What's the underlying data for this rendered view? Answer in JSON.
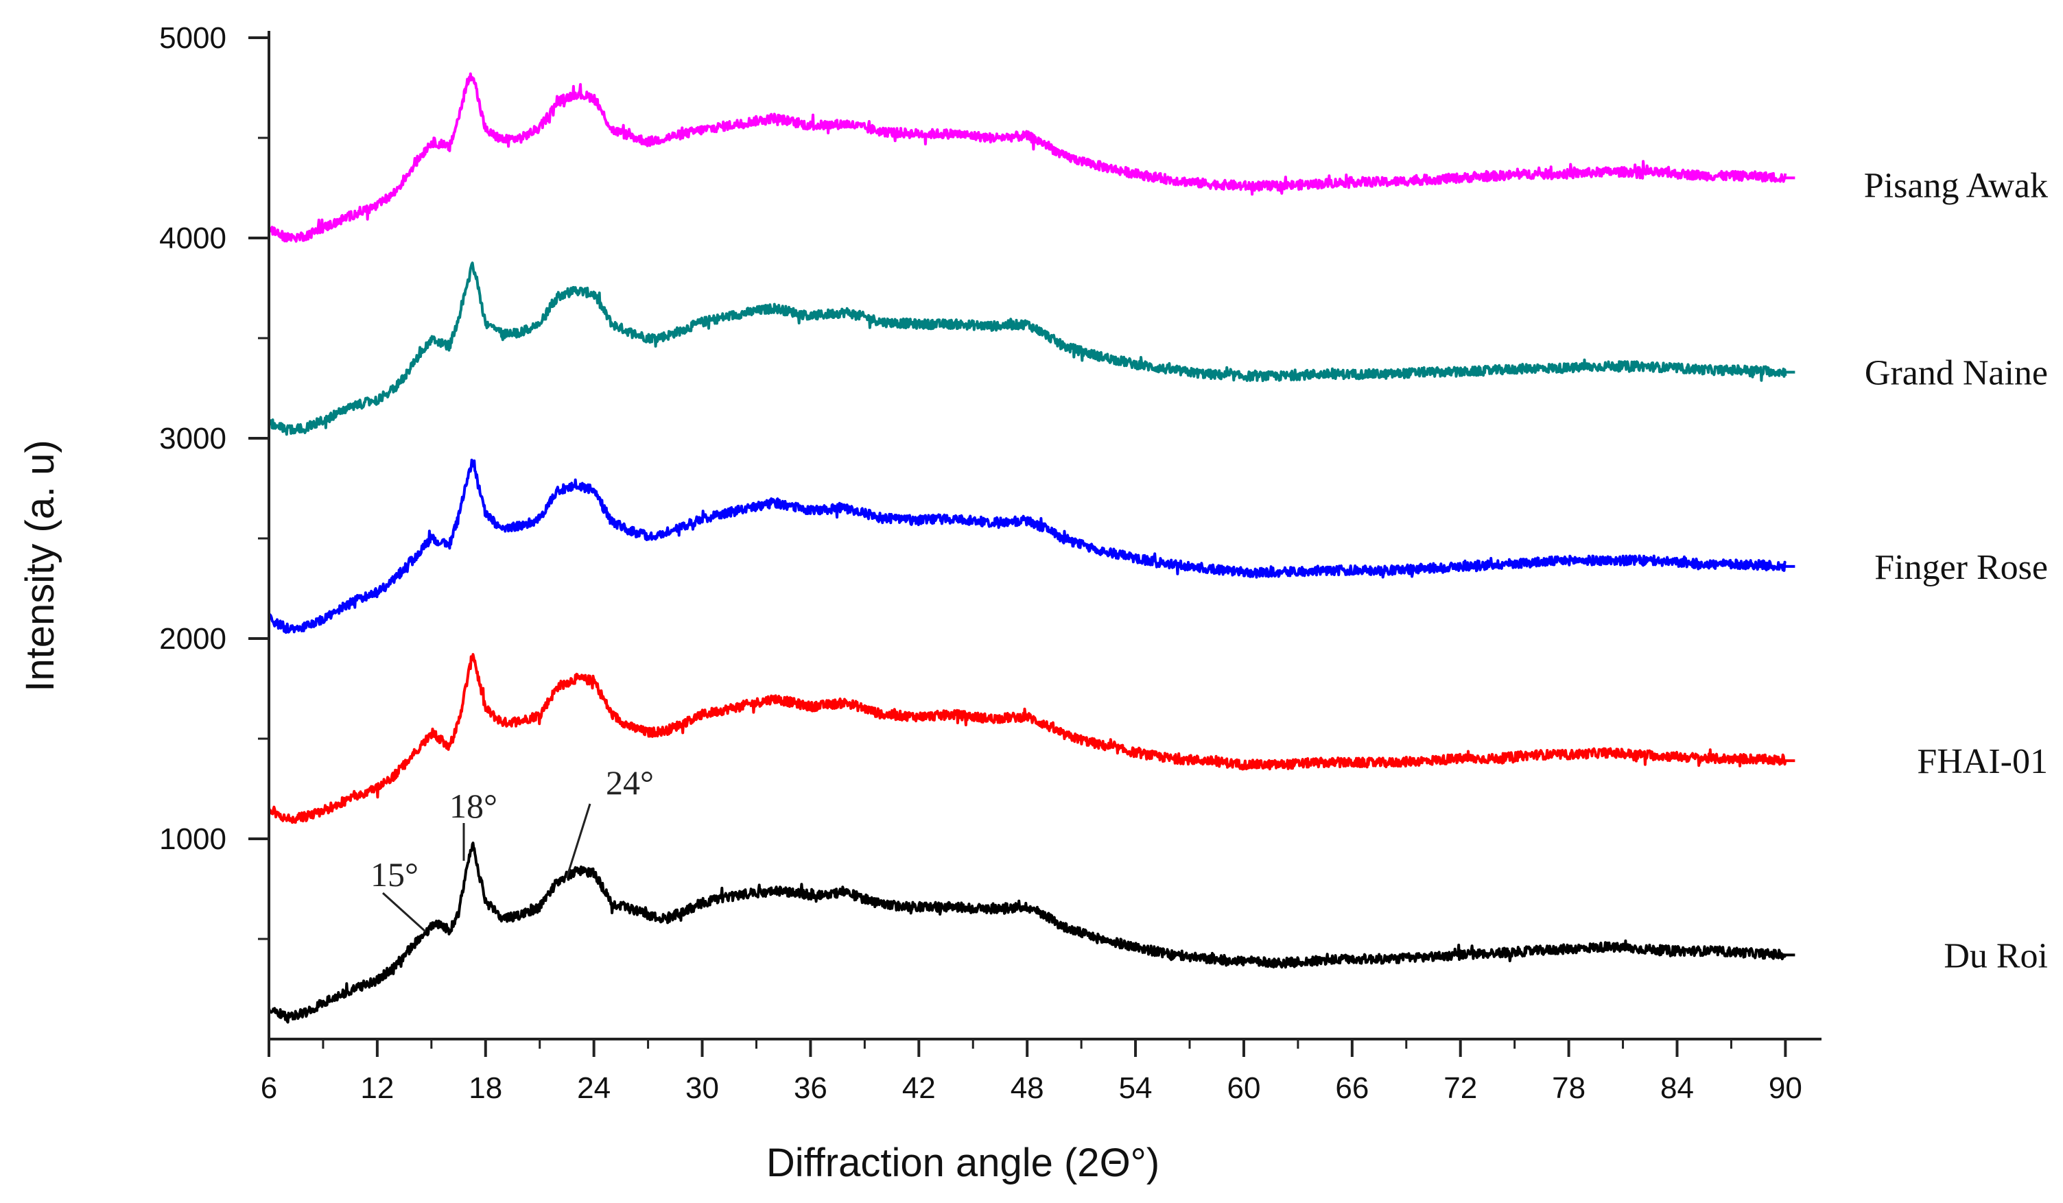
{
  "chart_data": {
    "type": "line",
    "title": "",
    "xlabel": "Diffraction angle (2Θ°)",
    "ylabel": "Intensity (a. u)",
    "xlim": [
      6,
      92
    ],
    "ylim": [
      0,
      5000
    ],
    "xticks": [
      6,
      12,
      18,
      24,
      30,
      36,
      42,
      48,
      54,
      60,
      66,
      72,
      78,
      84,
      90
    ],
    "yticks": [
      1000,
      2000,
      3000,
      4000,
      5000
    ],
    "grid": false,
    "legend": "inline-right",
    "series": [
      {
        "name": "Du Roi",
        "color": "#000000",
        "x": [
          6,
          7,
          8,
          9,
          10,
          11,
          12,
          13,
          14,
          15,
          15.5,
          16,
          16.5,
          17,
          17.3,
          17.7,
          18,
          18.5,
          19,
          20,
          21,
          22,
          23,
          24,
          25,
          26,
          27,
          28,
          30,
          32,
          34,
          36,
          38,
          40,
          42,
          44,
          46,
          48,
          49,
          50,
          52,
          54,
          56,
          58,
          60,
          62,
          64,
          66,
          68,
          70,
          72,
          74,
          76,
          78,
          80,
          82,
          84,
          86,
          88,
          90
        ],
        "y": [
          160,
          110,
          130,
          180,
          220,
          260,
          290,
          370,
          470,
          560,
          580,
          540,
          630,
          860,
          980,
          800,
          690,
          640,
          600,
          620,
          660,
          790,
          840,
          830,
          680,
          650,
          620,
          600,
          680,
          720,
          740,
          720,
          730,
          670,
          660,
          660,
          650,
          660,
          620,
          560,
          500,
          460,
          420,
          400,
          390,
          380,
          390,
          400,
          400,
          410,
          420,
          430,
          440,
          450,
          460,
          450,
          440,
          440,
          430,
          420
        ]
      },
      {
        "name": "FHAI-01",
        "color": "#ff0000",
        "x": [
          6,
          7,
          8,
          9,
          10,
          11,
          12,
          13,
          14,
          15,
          15.5,
          16,
          16.5,
          17,
          17.3,
          17.7,
          18,
          18.5,
          19,
          20,
          21,
          22,
          23,
          24,
          25,
          26,
          27,
          28,
          30,
          32,
          34,
          36,
          38,
          40,
          42,
          44,
          46,
          48,
          49,
          50,
          52,
          54,
          56,
          58,
          60,
          62,
          64,
          66,
          68,
          70,
          72,
          74,
          76,
          78,
          80,
          82,
          84,
          86,
          88,
          90
        ],
        "y": [
          1150,
          1100,
          1110,
          1140,
          1180,
          1220,
          1250,
          1320,
          1420,
          1520,
          1500,
          1460,
          1580,
          1800,
          1930,
          1760,
          1650,
          1610,
          1580,
          1590,
          1620,
          1760,
          1800,
          1790,
          1620,
          1560,
          1530,
          1540,
          1620,
          1660,
          1700,
          1660,
          1680,
          1620,
          1610,
          1620,
          1600,
          1610,
          1570,
          1520,
          1470,
          1430,
          1400,
          1390,
          1370,
          1370,
          1380,
          1380,
          1380,
          1390,
          1400,
          1400,
          1420,
          1420,
          1430,
          1420,
          1410,
          1400,
          1400,
          1390
        ]
      },
      {
        "name": "Finger Rose",
        "color": "#0000ff",
        "x": [
          6,
          7,
          8,
          9,
          10,
          11,
          12,
          13,
          14,
          15,
          15.5,
          16,
          16.5,
          17,
          17.3,
          17.7,
          18,
          18.5,
          19,
          20,
          21,
          22,
          23,
          24,
          25,
          26,
          27,
          28,
          30,
          32,
          34,
          36,
          38,
          40,
          42,
          44,
          46,
          48,
          49,
          50,
          52,
          54,
          56,
          58,
          60,
          62,
          64,
          66,
          68,
          70,
          72,
          74,
          76,
          78,
          80,
          82,
          84,
          86,
          88,
          90
        ],
        "y": [
          2100,
          2050,
          2060,
          2100,
          2150,
          2200,
          2230,
          2300,
          2400,
          2500,
          2480,
          2470,
          2600,
          2800,
          2900,
          2720,
          2620,
          2580,
          2550,
          2560,
          2600,
          2740,
          2760,
          2740,
          2580,
          2540,
          2510,
          2530,
          2600,
          2640,
          2680,
          2640,
          2650,
          2600,
          2590,
          2600,
          2580,
          2590,
          2550,
          2500,
          2440,
          2400,
          2370,
          2350,
          2330,
          2330,
          2340,
          2340,
          2340,
          2350,
          2360,
          2370,
          2380,
          2390,
          2390,
          2390,
          2380,
          2370,
          2370,
          2360
        ]
      },
      {
        "name": "Grand Naine",
        "color": "#008080",
        "x": [
          6,
          7,
          8,
          9,
          10,
          11,
          12,
          13,
          14,
          15,
          15.5,
          16,
          16.5,
          17,
          17.3,
          17.7,
          18,
          18.5,
          19,
          20,
          21,
          22,
          23,
          24,
          25,
          26,
          27,
          28,
          30,
          32,
          34,
          36,
          38,
          40,
          42,
          44,
          46,
          48,
          49,
          50,
          52,
          54,
          56,
          58,
          60,
          62,
          64,
          66,
          68,
          70,
          72,
          74,
          76,
          78,
          80,
          82,
          84,
          86,
          88,
          90
        ],
        "y": [
          3080,
          3040,
          3050,
          3090,
          3130,
          3170,
          3190,
          3250,
          3370,
          3490,
          3480,
          3460,
          3600,
          3780,
          3870,
          3700,
          3580,
          3550,
          3520,
          3530,
          3570,
          3710,
          3740,
          3720,
          3570,
          3530,
          3500,
          3510,
          3580,
          3620,
          3650,
          3610,
          3630,
          3580,
          3570,
          3570,
          3560,
          3570,
          3520,
          3460,
          3410,
          3370,
          3340,
          3320,
          3310,
          3310,
          3320,
          3320,
          3320,
          3330,
          3330,
          3340,
          3350,
          3350,
          3360,
          3360,
          3350,
          3340,
          3340,
          3330
        ]
      },
      {
        "name": "Pisang Awak",
        "color": "#ff00ff",
        "x": [
          6,
          7,
          8,
          9,
          10,
          11,
          12,
          13,
          14,
          15,
          15.5,
          16,
          16.5,
          17,
          17.3,
          17.7,
          18,
          18.5,
          19,
          20,
          21,
          22,
          23,
          24,
          25,
          26,
          27,
          28,
          30,
          32,
          34,
          36,
          38,
          40,
          42,
          44,
          46,
          48,
          49,
          50,
          52,
          54,
          56,
          58,
          60,
          62,
          64,
          66,
          68,
          70,
          72,
          74,
          76,
          78,
          80,
          82,
          84,
          86,
          88,
          90
        ],
        "y": [
          4050,
          4000,
          4010,
          4050,
          4090,
          4130,
          4160,
          4230,
          4360,
          4480,
          4470,
          4450,
          4600,
          4780,
          4820,
          4650,
          4540,
          4510,
          4490,
          4500,
          4550,
          4680,
          4720,
          4700,
          4540,
          4510,
          4480,
          4500,
          4540,
          4570,
          4600,
          4560,
          4570,
          4530,
          4520,
          4520,
          4500,
          4510,
          4470,
          4410,
          4360,
          4320,
          4290,
          4270,
          4260,
          4260,
          4270,
          4280,
          4280,
          4290,
          4300,
          4310,
          4320,
          4320,
          4330,
          4330,
          4320,
          4310,
          4310,
          4300
        ]
      }
    ],
    "annotations": [
      {
        "text": "15°",
        "x": 15.7,
        "y": 560
      },
      {
        "text": "18°",
        "x": 17.3,
        "y": 980
      },
      {
        "text": "24°",
        "x": 23.3,
        "y": 830
      }
    ]
  }
}
